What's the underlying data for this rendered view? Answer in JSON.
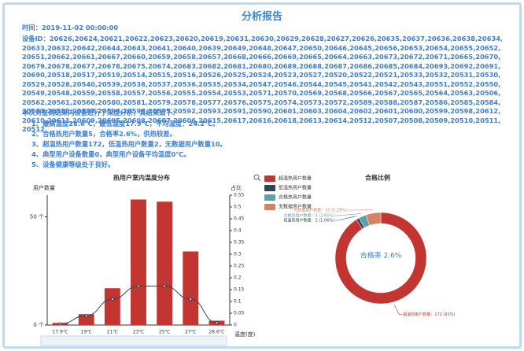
{
  "report": {
    "title": "分析报告",
    "time": "时间：2019-11-02 00:00:00",
    "devices": "设备ID：20626,20624,20621,20622,20623,20620,20619,20631,20630,20629,20628,20627,20626,20635,20637,20636,20638,20634,20633,20632,20642,20644,20643,20641,20640,20639,20649,20648,20647,20650,20646,20645,20656,20653,20654,20655,20652,20651,20662,20661,20667,20660,20659,20658,20657,20668,20666,20669,20665,20664,20663,20673,20672,20671,20665,20670,20679,20678,20677,20678,20675,20674,20683,20682,20681,20680,20689,20688,20687,20686,20685,20684,20693,20692,20691,20690,20518,20517,20519,20514,20515,20516,20526,20525,20524,20523,20527,20520,20522,20521,20533,20532,20531,20530,20529,20528,20540,20539,20538,20537,20536,20535,20534,20547,20546,20544,20545,20541,20542,20543,20551,20552,20550,20549,20548,20559,20558,20557,20556,20555,20554,20553,20571,20570,20569,20568,20566,20567,20565,20564,20563,20506,20562,20561,20560,20580,20581,20579,20578,20577,20576,20575,20574,20573,20572,20589,20588,20587,20586,20585,20584,20583,20582,20597,20594,20596,20595,20592,20593,20591,20590,20601,20603,20604,20602,20601,20600,20599,20598,20612,20610,20611,20609,20605,20608,20607,20606,20615,20617,20616,20618,20613,20614,20512,20507,20508,20509,20510,20511,20512",
    "summary": "本次对查询结果内设备进行了深度分析，其结果如下：",
    "items": [
      "1、最高温度28.6℃，最低温度17.9℃，平均温度：24.2℃。",
      "2、合格热用户数量5，合格率2.6%，供热较差。",
      "3、超温热用户数量172，低温热用户数量2，无数据用户数量10。",
      "4、典型用户设备数量0，典型用户设备平均温度0℃。",
      "5、设备健康等级处于良好。"
    ]
  },
  "chart_data": [
    {
      "type": "bar",
      "title": "热用户室内温度分布",
      "ylabel": "用户数量",
      "y2label": "占比",
      "xlabel": "温度(度)",
      "categories": [
        "17.9℃",
        "19℃",
        "21℃",
        "23℃",
        "25℃",
        "27℃",
        "28.6℃"
      ],
      "series": [
        {
          "name": "用户数量",
          "type": "bar",
          "color": "#c23531",
          "values": [
            1,
            5,
            17,
            58,
            57,
            34,
            2
          ]
        },
        {
          "name": "占比",
          "type": "line",
          "axis": "y2",
          "color": "#2f4554",
          "values": [
            0.005,
            0.04,
            0.11,
            0.165,
            0.165,
            0.11,
            0.01
          ]
        }
      ],
      "ylim": [
        0,
        60
      ],
      "yticks": [
        {
          "value": 0,
          "label": "0 个"
        },
        {
          "value": 50,
          "label": "50 个"
        }
      ],
      "y2lim": [
        0,
        0.55
      ],
      "y2ticks": [
        0,
        0.05,
        0.1,
        0.15,
        0.2,
        0.25,
        0.3,
        0.35,
        0.4,
        0.45,
        0.5,
        0.55
      ]
    },
    {
      "type": "pie",
      "title": "合格比例",
      "center_label": "合格率 2.6%",
      "categories": [
        "超温热用户数量",
        "低温热用户数量",
        "合格热用户数量",
        "无数据用户数量"
      ],
      "values": [
        172,
        2,
        5,
        10
      ],
      "value_labels": [
        "超温热用户数量：172 (91%)",
        "低温热用户数量：2 (1.06%)",
        "合格热用户数量：5 (2.65%)",
        "无数据用户数量：10 (5.29%)"
      ],
      "colors": [
        "#c23531",
        "#2f4554",
        "#61a0a8",
        "#d48265"
      ]
    }
  ]
}
